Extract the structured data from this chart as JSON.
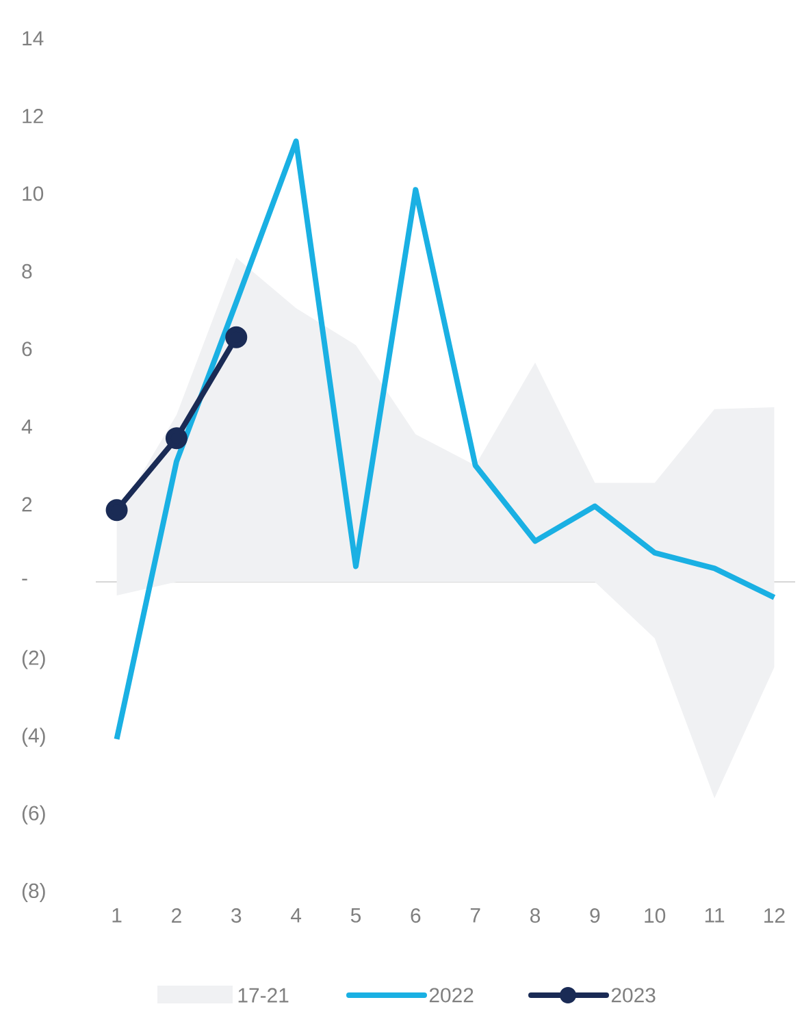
{
  "chart_data": {
    "type": "line",
    "categories": [
      "1",
      "2",
      "3",
      "4",
      "5",
      "6",
      "7",
      "8",
      "9",
      "10",
      "11",
      "12"
    ],
    "series": [
      {
        "name": "17-21",
        "type": "area",
        "color": "#f0f1f3",
        "values": [
          null,
          null,
          null,
          null,
          null,
          null,
          null,
          null,
          null,
          null,
          null,
          null
        ],
        "upper": [
          1.7,
          4.3,
          8.35,
          7.05,
          6.1,
          3.8,
          3.0,
          5.65,
          2.55,
          2.55,
          4.45,
          4.5
        ],
        "lower": [
          -0.35,
          0,
          0,
          0,
          0,
          0,
          0,
          0,
          0,
          -1.45,
          -5.57,
          -2.2
        ]
      },
      {
        "name": "2022",
        "type": "line",
        "color": "#1ab0e3",
        "marker": "none",
        "values": [
          -4.05,
          3.1,
          7.2,
          11.35,
          0.4,
          10.1,
          3.0,
          1.05,
          1.95,
          0.75,
          0.35,
          -0.4
        ]
      },
      {
        "name": "2023",
        "color": "#1a2b55",
        "marker": "circle",
        "values": [
          1.85,
          3.7,
          6.3,
          null,
          null,
          null,
          null,
          null,
          null,
          null,
          null,
          null
        ]
      }
    ],
    "ylim": [
      -8,
      14
    ],
    "yticks": [
      14,
      12,
      10,
      8,
      6,
      4,
      2,
      {
        "value": 0,
        "label": "-"
      },
      {
        "value": -2,
        "label": "(2)"
      },
      {
        "value": -4,
        "label": "(4)"
      },
      {
        "value": -6,
        "label": "(6)"
      },
      {
        "value": -8,
        "label": "(8)"
      }
    ],
    "ref_lines": [
      {
        "axis": "y",
        "value": 0,
        "color": "#d9d9d9"
      }
    ],
    "grid": false,
    "legend": "bottom"
  }
}
